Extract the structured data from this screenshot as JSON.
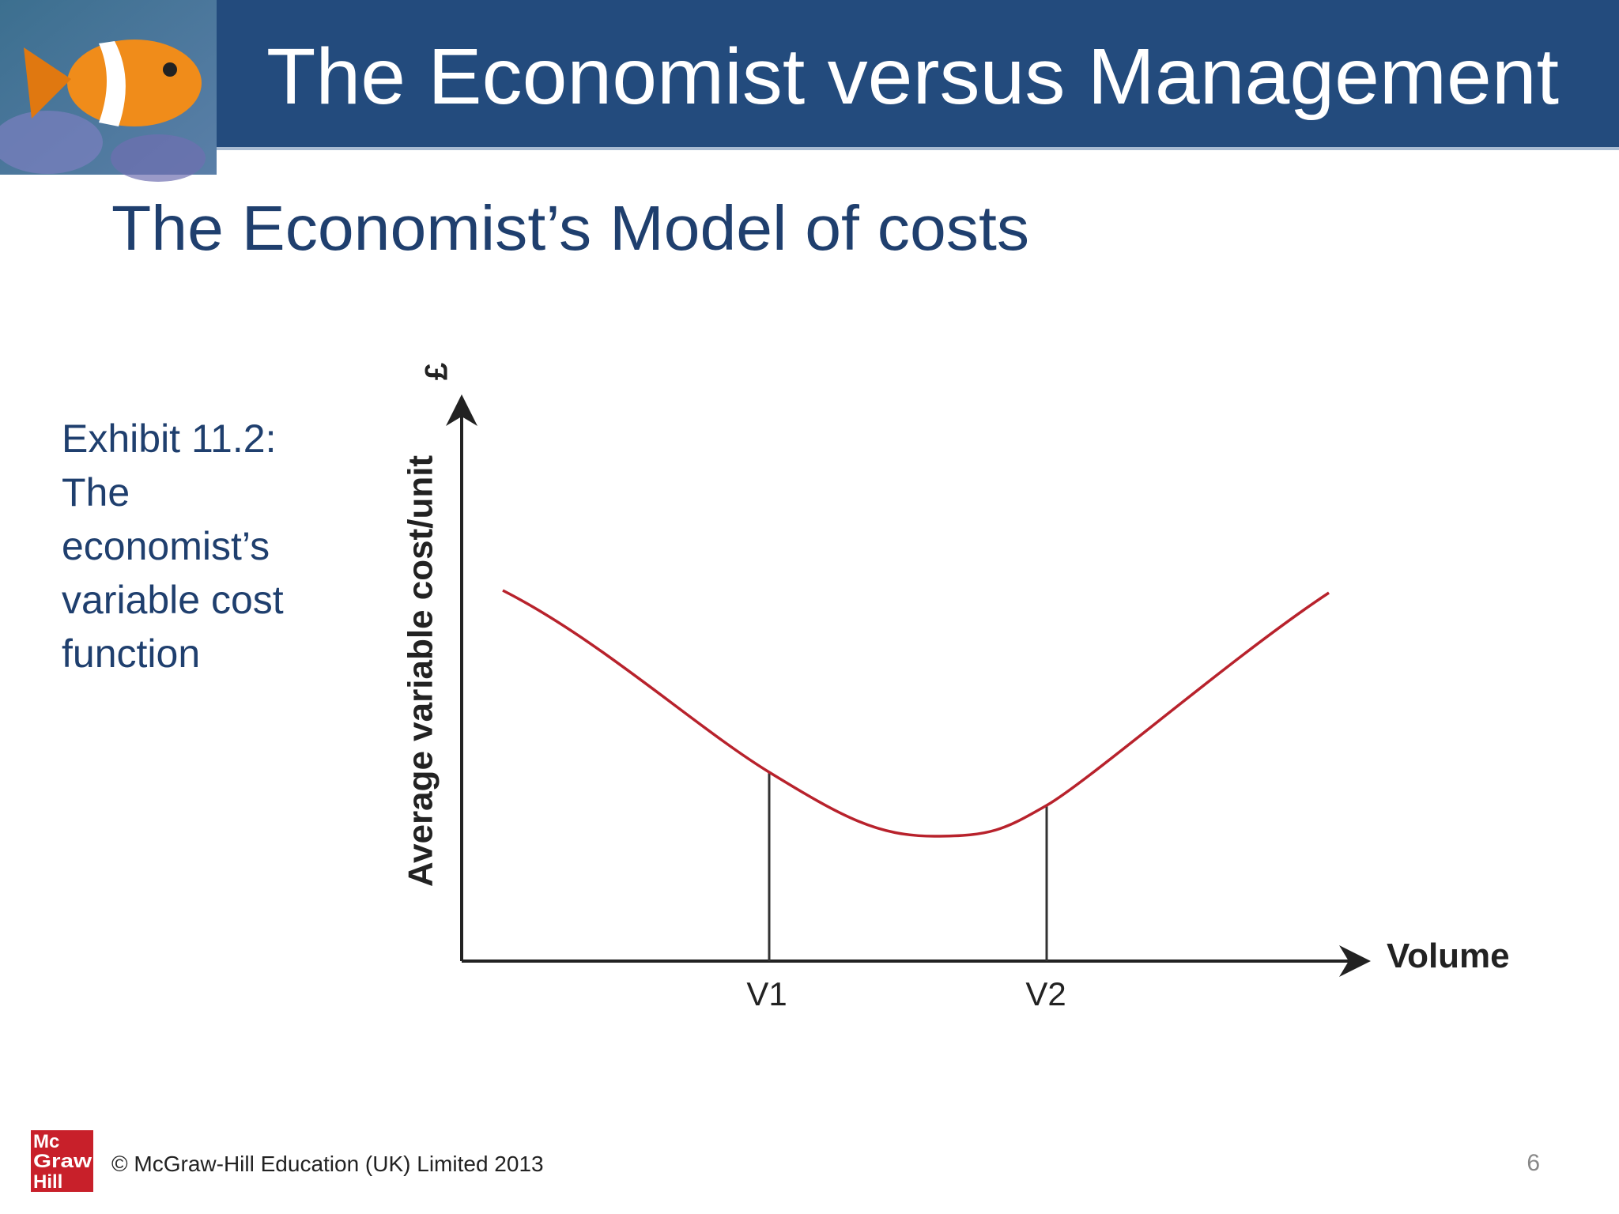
{
  "header": {
    "title": "The Economist versus Management"
  },
  "subtitle": "The Economist’s Model of costs",
  "caption": [
    "Exhibit 11.2:",
    "The",
    "economist’s",
    "variable cost",
    "function"
  ],
  "diagram": {
    "y_unit": "£",
    "y_label": "Average variable cost/unit",
    "x_label": "Volume",
    "markers": [
      "V1",
      "V2"
    ]
  },
  "footer": {
    "logo": [
      "Mc",
      "Graw",
      "Hill"
    ],
    "copyright": "© McGraw-Hill Education (UK) Limited 2013",
    "page_number": 6
  }
}
